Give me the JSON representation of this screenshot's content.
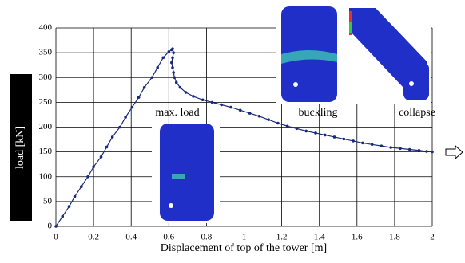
{
  "chart_data": {
    "type": "line",
    "x_label": "Displacement of top of the tower [m]",
    "y_label": "load [kN]",
    "annotations": [
      "max. load",
      "buckling",
      "collapse"
    ],
    "series": [
      {
        "color": "#1a2a7a",
        "x": [
          0,
          0.035,
          0.07,
          0.1,
          0.135,
          0.17,
          0.2,
          0.24,
          0.27,
          0.3,
          0.34,
          0.37,
          0.405,
          0.44,
          0.47,
          0.51,
          0.54,
          0.57,
          0.6,
          0.615,
          0.62,
          0.625,
          0.62,
          0.615,
          0.62,
          0.625,
          0.63,
          0.64,
          0.66,
          0.69,
          0.73,
          0.78,
          0.83,
          0.88,
          0.93,
          0.98,
          1.03,
          1.08,
          1.13,
          1.18,
          1.23,
          1.28,
          1.33,
          1.38,
          1.43,
          1.48,
          1.53,
          1.58,
          1.63,
          1.68,
          1.73,
          1.78,
          1.83,
          1.88,
          1.93,
          1.97,
          2.0
        ],
        "values": [
          0,
          20,
          40,
          60,
          80,
          100,
          120,
          140,
          160,
          180,
          200,
          220,
          240,
          260,
          280,
          300,
          320,
          340,
          352,
          356,
          358,
          350,
          340,
          330,
          320,
          310,
          300,
          290,
          280,
          270,
          262,
          255,
          250,
          245,
          240,
          234,
          228,
          222,
          215,
          208,
          202,
          197,
          192,
          188,
          184,
          180,
          176,
          172,
          168,
          165,
          162,
          159,
          157,
          155,
          153,
          151,
          150
        ]
      }
    ],
    "xlim": [
      0,
      2
    ],
    "xticks": [
      0,
      0.2,
      0.4,
      0.6,
      0.8,
      1,
      1.2,
      1.4,
      1.6,
      1.8,
      2
    ],
    "ylim": [
      0,
      400
    ],
    "yticks": [
      0,
      50,
      100,
      150,
      200,
      250,
      300,
      350,
      400
    ],
    "grid": true
  }
}
